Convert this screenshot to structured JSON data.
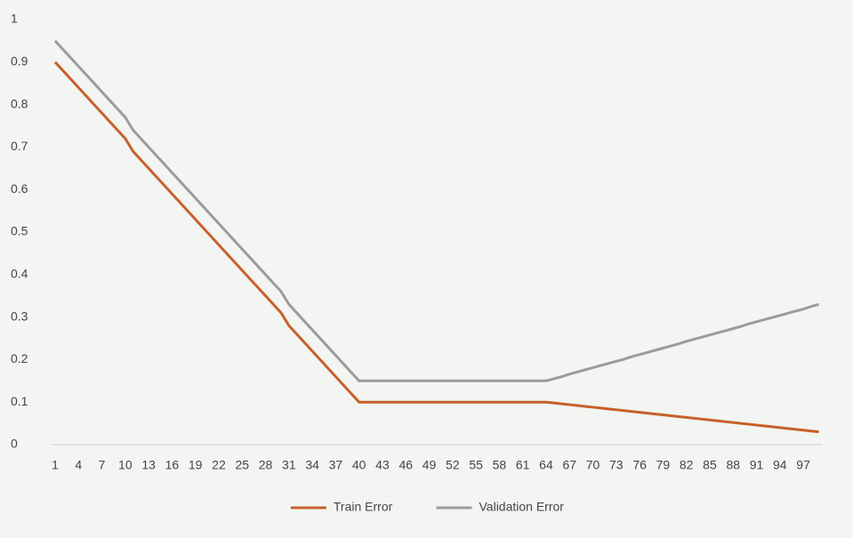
{
  "chart_data": {
    "type": "line",
    "categories": [
      "1",
      null,
      null,
      "4",
      null,
      null,
      "7",
      null,
      null,
      "10",
      null,
      null,
      "13",
      null,
      null,
      "16",
      null,
      null,
      "19",
      null,
      null,
      "22",
      null,
      null,
      "25",
      null,
      null,
      "28",
      null,
      null,
      "31",
      null,
      null,
      "34",
      null,
      null,
      "37",
      null,
      null,
      "40",
      null,
      null,
      "43",
      null,
      null,
      "46",
      null,
      null,
      "49",
      null,
      null,
      "52",
      null,
      null,
      "55",
      null,
      null,
      "58",
      null,
      null,
      "61",
      null,
      null,
      "64",
      null,
      null,
      "67",
      null,
      null,
      "70",
      null,
      null,
      "73",
      null,
      null,
      "76",
      null,
      null,
      "79",
      null,
      null,
      "82",
      null,
      null,
      "85",
      null,
      null,
      "88",
      null,
      null,
      "91",
      null,
      null,
      "94",
      null,
      null,
      "97",
      null,
      null
    ],
    "series": [
      {
        "name": "Train Error",
        "color": "#c8602a",
        "values": [
          0.9,
          0.88,
          0.86,
          0.84,
          0.82,
          0.8,
          0.78,
          0.76,
          0.74,
          0.72,
          0.69,
          0.67,
          0.65,
          0.63,
          0.61,
          0.59,
          0.57,
          0.55,
          0.53,
          0.51,
          0.49,
          0.47,
          0.45,
          0.43,
          0.41,
          0.39,
          0.37,
          0.35,
          0.33,
          0.31,
          0.28,
          0.26,
          0.24,
          0.22,
          0.2,
          0.18,
          0.16,
          0.14,
          0.12,
          0.1,
          0.1,
          0.1,
          0.1,
          0.1,
          0.1,
          0.1,
          0.1,
          0.1,
          0.1,
          0.1,
          0.1,
          0.1,
          0.1,
          0.1,
          0.1,
          0.1,
          0.1,
          0.1,
          0.1,
          0.1,
          0.1,
          0.1,
          0.1,
          0.1,
          0.098,
          0.096,
          0.094,
          0.092,
          0.09,
          0.088,
          0.086,
          0.084,
          0.082,
          0.08,
          0.078,
          0.076,
          0.074,
          0.072,
          0.07,
          0.068,
          0.066,
          0.064,
          0.062,
          0.06,
          0.058,
          0.056,
          0.054,
          0.052,
          0.05,
          0.048,
          0.046,
          0.044,
          0.042,
          0.04,
          0.038,
          0.036,
          0.034,
          0.032,
          0.03
        ]
      },
      {
        "name": "Validation Error",
        "color": "#9b9b9b",
        "values": [
          0.95,
          0.93,
          0.91,
          0.89,
          0.87,
          0.85,
          0.83,
          0.81,
          0.79,
          0.77,
          0.74,
          0.72,
          0.7,
          0.68,
          0.66,
          0.64,
          0.62,
          0.6,
          0.58,
          0.56,
          0.54,
          0.52,
          0.5,
          0.48,
          0.46,
          0.44,
          0.42,
          0.4,
          0.38,
          0.36,
          0.33,
          0.31,
          0.29,
          0.27,
          0.25,
          0.23,
          0.21,
          0.19,
          0.17,
          0.15,
          0.15,
          0.15,
          0.15,
          0.15,
          0.15,
          0.15,
          0.15,
          0.15,
          0.15,
          0.15,
          0.15,
          0.15,
          0.15,
          0.15,
          0.15,
          0.15,
          0.15,
          0.15,
          0.15,
          0.15,
          0.15,
          0.15,
          0.15,
          0.15,
          0.155,
          0.16,
          0.166,
          0.171,
          0.176,
          0.181,
          0.186,
          0.191,
          0.196,
          0.201,
          0.207,
          0.212,
          0.217,
          0.222,
          0.227,
          0.232,
          0.237,
          0.243,
          0.248,
          0.253,
          0.258,
          0.263,
          0.268,
          0.273,
          0.278,
          0.284,
          0.289,
          0.294,
          0.299,
          0.304,
          0.309,
          0.314,
          0.319,
          0.325,
          0.33
        ]
      }
    ],
    "ylim": [
      0,
      1
    ],
    "yticks": [
      0,
      0.1,
      0.2,
      0.3,
      0.4,
      0.5,
      0.6,
      0.7,
      0.8,
      0.9,
      1
    ],
    "grid": false,
    "legend": "bottom"
  }
}
